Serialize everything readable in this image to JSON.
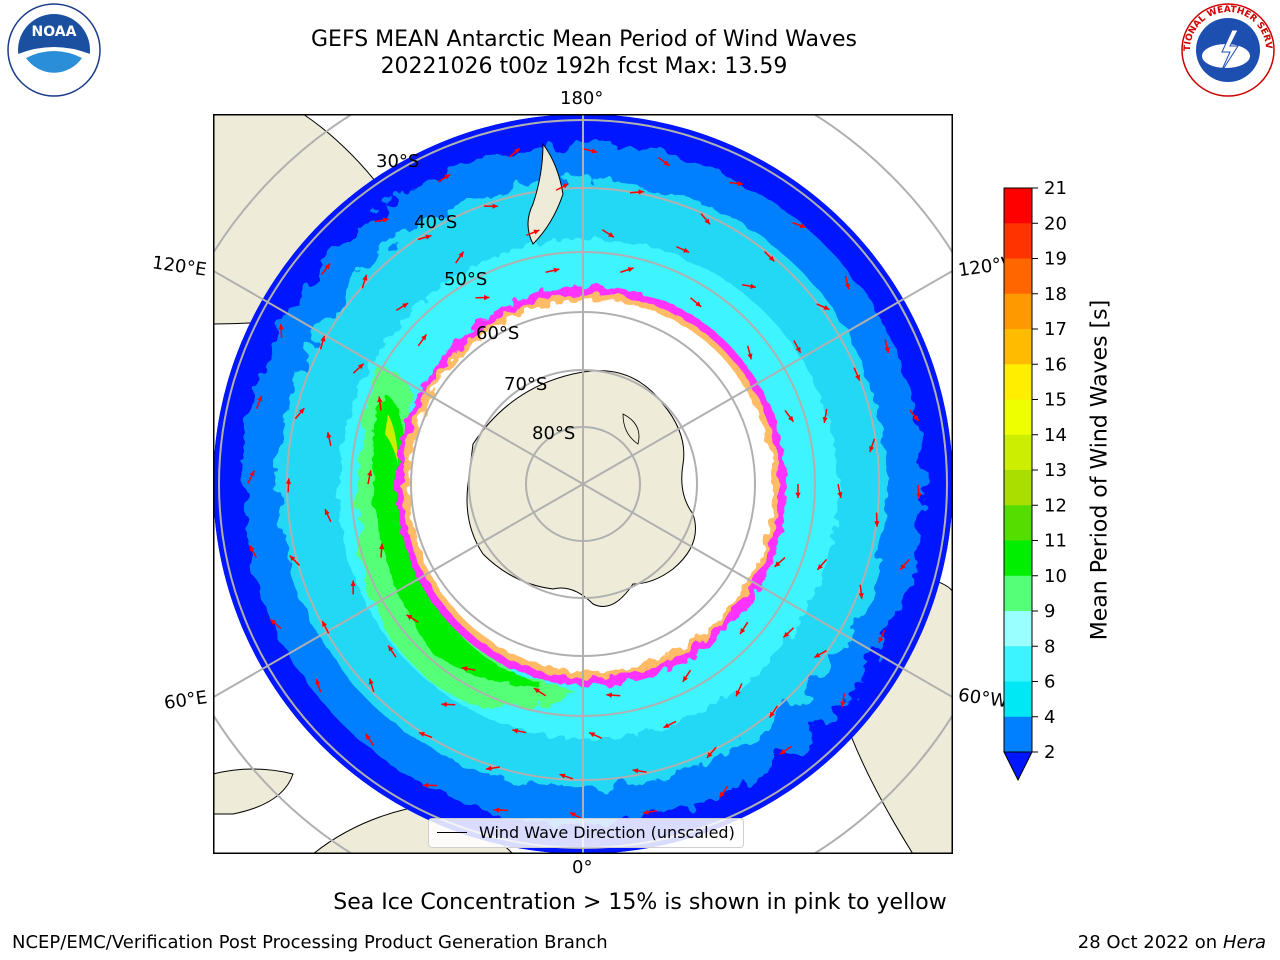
{
  "title_line1": "GEFS MEAN Antarctic Mean Period of Wind Waves",
  "title_line2": "20221026 t00z 192h fcst   Max: 13.59",
  "logos": {
    "left": "noaa-logo",
    "right": "nws-logo",
    "noaa_text": "NOAA",
    "nws_text": "NATIONAL WEATHER SERVICE"
  },
  "map": {
    "projection": "south-polar-stereographic",
    "lon_labels": {
      "top": "180°",
      "bottom": "0°",
      "upper_left": "120°E",
      "upper_right": "120°W",
      "lower_left": "60°E",
      "lower_right": "60°W"
    },
    "lat_labels": [
      "30°S",
      "40°S",
      "50°S",
      "60°S",
      "70°S",
      "80°S"
    ],
    "colors": {
      "land": "#eeecd9",
      "ocean_deep": "#0016ff",
      "ocean_mid": "#0080ff",
      "ocean_light": "#34e8f4",
      "swell_green": "#00dd00",
      "ice": "#ffffff",
      "ice_edge": "#ff33ff",
      "arrow": "#ff0000"
    }
  },
  "legend": {
    "label": "Wind Wave Direction (unscaled)"
  },
  "colorbar": {
    "title": "Mean Period of Wind Waves [s]",
    "ticks": [
      "2",
      "4",
      "6",
      "8",
      "9",
      "10",
      "11",
      "12",
      "13",
      "14",
      "15",
      "16",
      "17",
      "18",
      "19",
      "20",
      "21"
    ],
    "colors": [
      "#0016ff",
      "#0080ff",
      "#00e8f4",
      "#3cf4ff",
      "#99ffff",
      "#55ff77",
      "#00ee00",
      "#55dd00",
      "#aadd00",
      "#ccee00",
      "#eeff00",
      "#ffee00",
      "#ffbb00",
      "#ff9900",
      "#ff6600",
      "#ff3300",
      "#ff0000"
    ],
    "extend": "min"
  },
  "footer_note": "Sea Ice Concentration > 15% is shown in pink to yellow",
  "credit_left": "NCEP/EMC/Verification Post Processing Product Generation Branch",
  "credit_right_prefix": "28 Oct 2022 on ",
  "credit_right_host": "Hera"
}
